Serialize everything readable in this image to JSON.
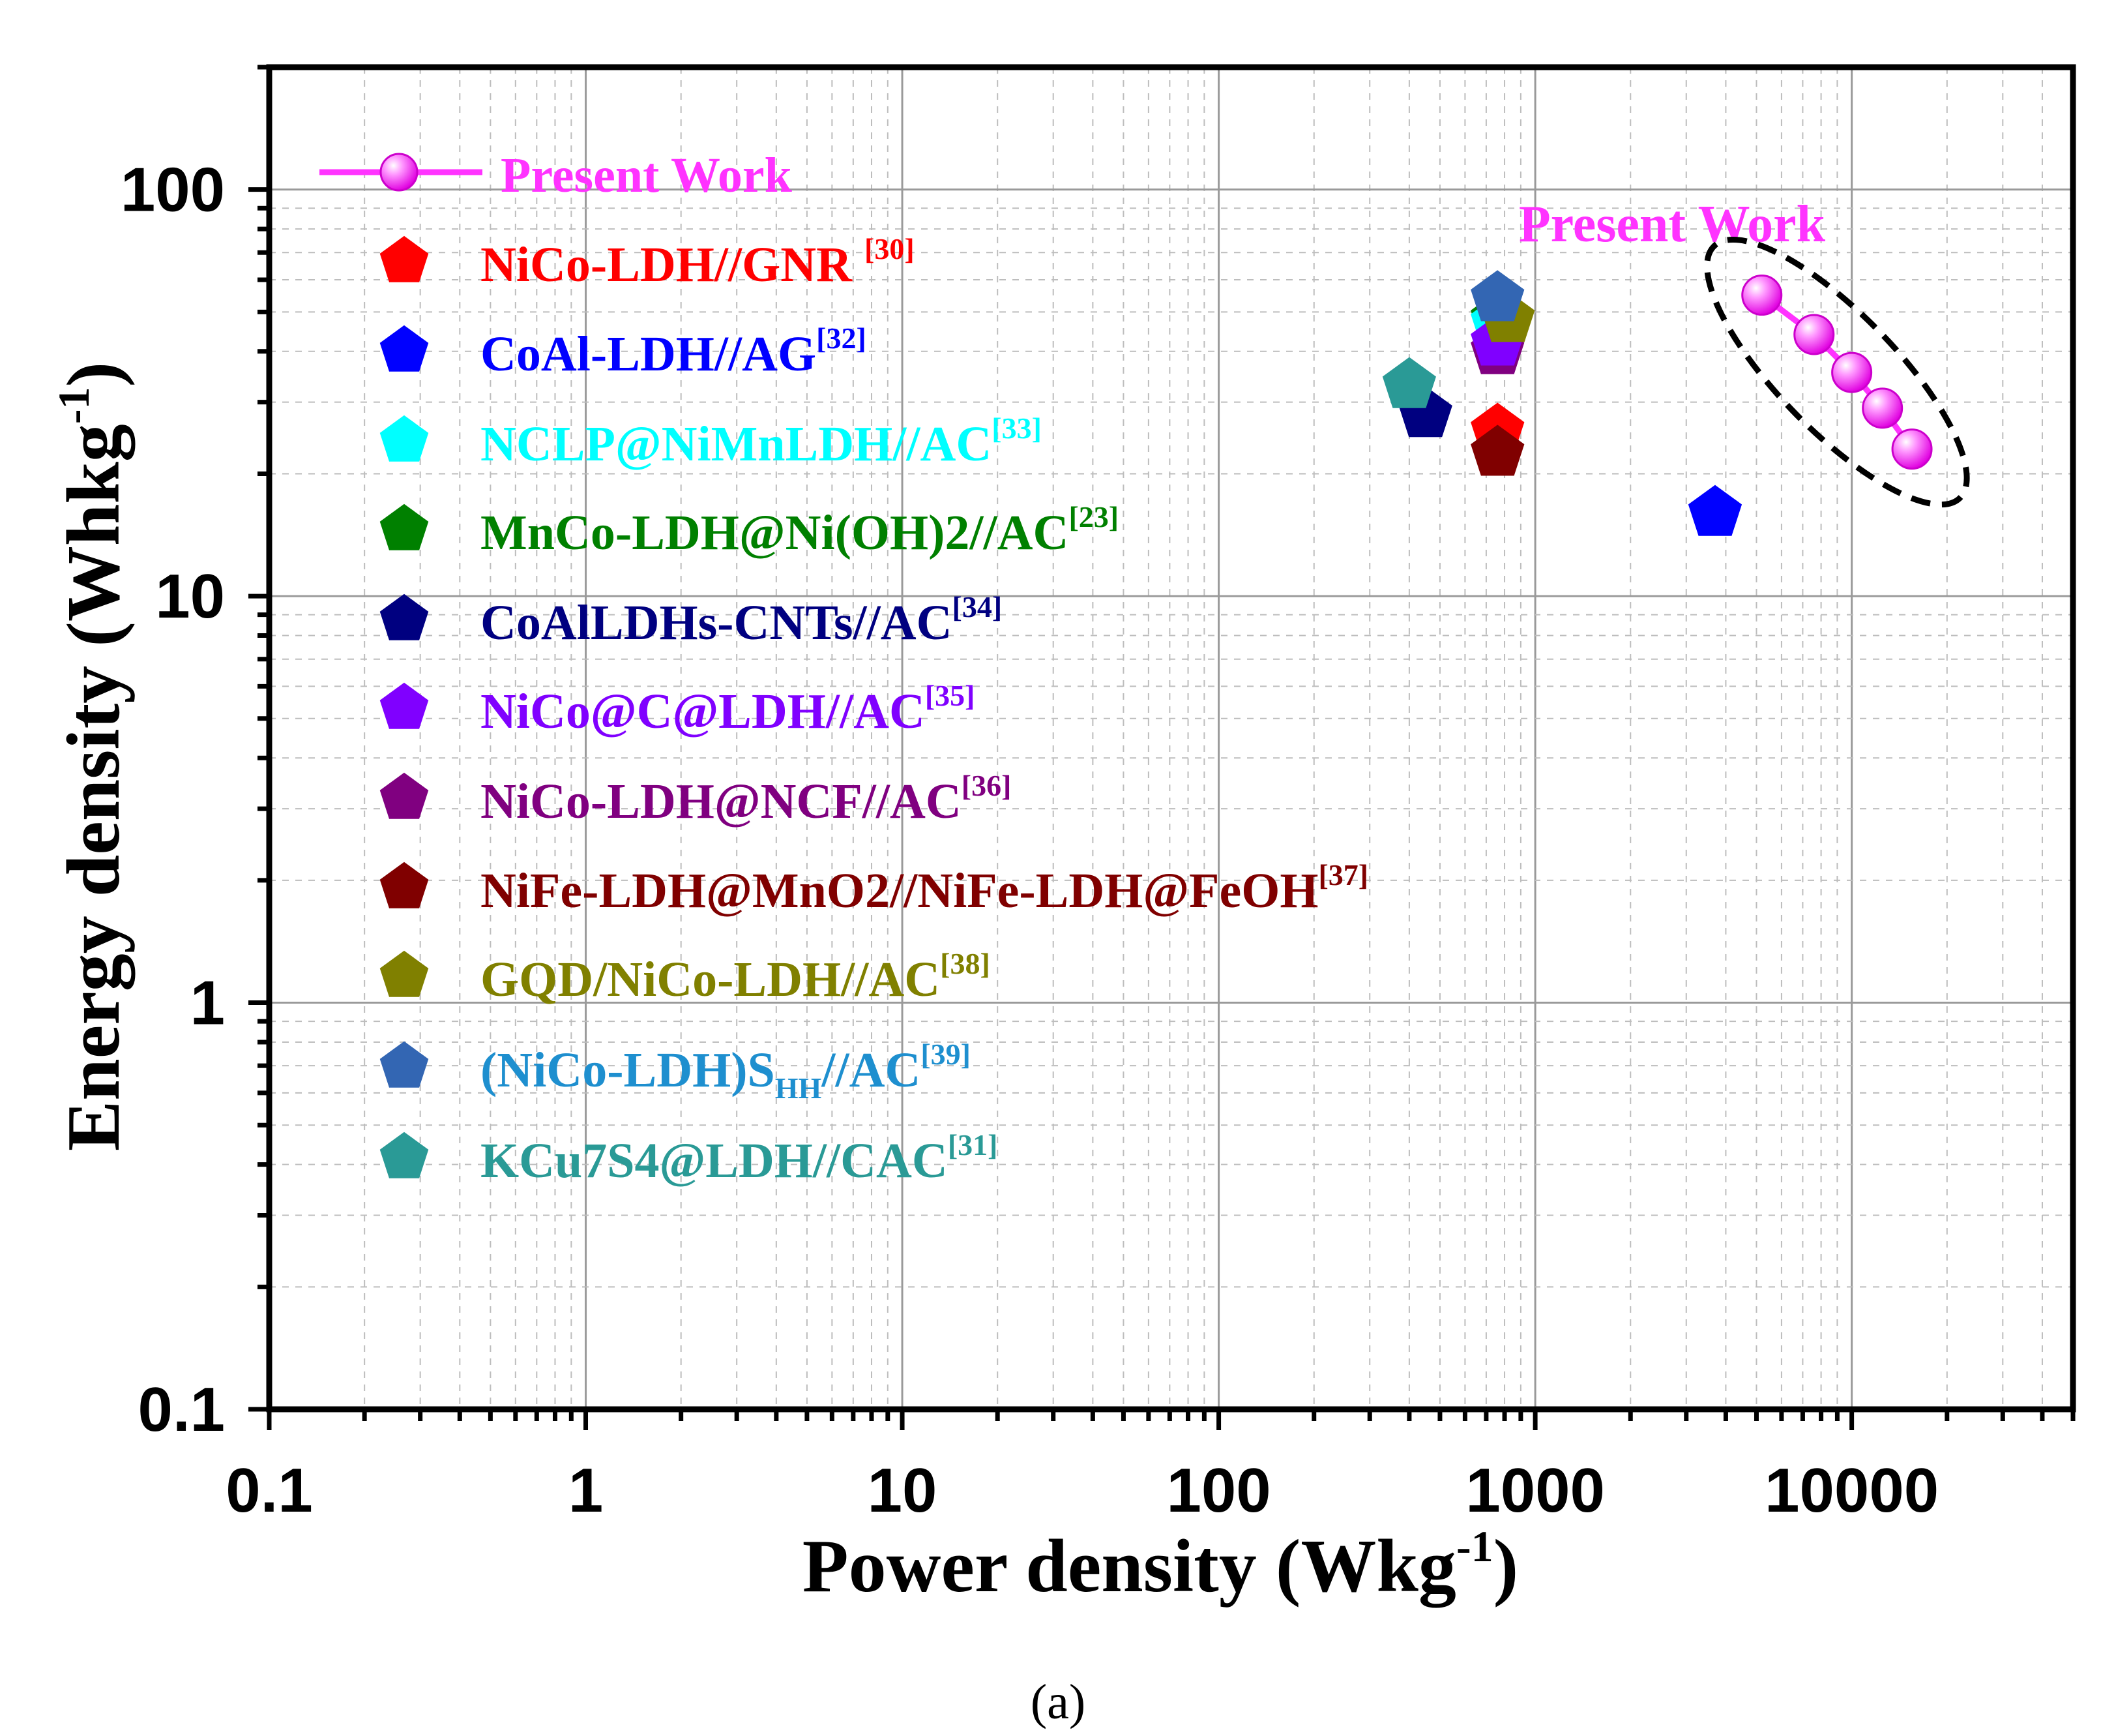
{
  "chart_data": {
    "type": "scatter",
    "x_scale": "log",
    "y_scale": "log",
    "xlim": [
      0.1,
      50000
    ],
    "ylim": [
      0.1,
      200
    ],
    "grid": true,
    "xlabel": "Power density (Wkg",
    "xlabel_sup": "-1",
    "xlabel_end": ")",
    "ylabel": "Energy density (Whkg",
    "ylabel_sup": "-1",
    "ylabel_end": ")",
    "x_ticks": [
      {
        "value": 0.1,
        "label": "0.1"
      },
      {
        "value": 1,
        "label": "1"
      },
      {
        "value": 10,
        "label": "10"
      },
      {
        "value": 100,
        "label": "100"
      },
      {
        "value": 1000,
        "label": "1000"
      },
      {
        "value": 10000,
        "label": "10000"
      }
    ],
    "y_ticks": [
      {
        "value": 0.1,
        "label": "0.1"
      },
      {
        "value": 1,
        "label": "1"
      },
      {
        "value": 10,
        "label": "10"
      },
      {
        "value": 100,
        "label": "100"
      }
    ],
    "series": [
      {
        "name": "Present Work",
        "color": "#ff33ff",
        "marker": "sphere",
        "line": true,
        "ref": "",
        "sub": "",
        "suffix": "",
        "points": [
          [
            5200,
            55
          ],
          [
            7600,
            44
          ],
          [
            10000,
            35.5
          ],
          [
            12500,
            29
          ],
          [
            15500,
            23
          ]
        ]
      },
      {
        "name": "NiCo-LDH//GNR ",
        "color": "#ff0000",
        "marker": "pentagon",
        "line": false,
        "ref": "[30]",
        "sub": "",
        "suffix": "",
        "points": [
          [
            760,
            25.5
          ]
        ]
      },
      {
        "name": "CoAl-LDH//AG",
        "color": "#0000ff",
        "marker": "pentagon",
        "line": false,
        "ref": "[32]",
        "sub": "",
        "suffix": "",
        "points": [
          [
            3700,
            16
          ]
        ]
      },
      {
        "name": "NCLP@NiMnLDH//AC",
        "color": "#00ffff",
        "marker": "pentagon",
        "line": false,
        "ref": "[33]",
        "sub": "",
        "suffix": "",
        "points": [
          [
            760,
            47
          ]
        ]
      },
      {
        "name": "MnCo-LDH@Ni(OH)2//AC",
        "color": "#008000",
        "marker": "pentagon",
        "line": false,
        "ref": "[23]",
        "sub": "",
        "suffix": "",
        "points": [
          [
            760,
            48
          ]
        ]
      },
      {
        "name": "CoAlLDHs-CNTs//AC",
        "color": "#000080",
        "marker": "pentagon",
        "line": false,
        "ref": "[34]",
        "sub": "",
        "suffix": "",
        "points": [
          [
            450,
            28
          ]
        ]
      },
      {
        "name": "NiCo@C@LDH//AC",
        "color": "#8000ff",
        "marker": "pentagon",
        "line": false,
        "ref": "[35]",
        "sub": "",
        "suffix": "",
        "points": [
          [
            760,
            42
          ]
        ]
      },
      {
        "name": "NiCo-LDH@NCF//AC",
        "color": "#800080",
        "marker": "pentagon",
        "line": false,
        "ref": "[36]",
        "sub": "",
        "suffix": "",
        "points": [
          [
            760,
            40
          ]
        ]
      },
      {
        "name": "NiFe-LDH@MnO2//NiFe-LDH@FeOH",
        "color": "#800000",
        "marker": "pentagon",
        "line": false,
        "ref": "[37]",
        "sub": "",
        "suffix": "",
        "points": [
          [
            760,
            22.5
          ]
        ]
      },
      {
        "name": "GQD/NiCo-LDH//AC",
        "color": "#808000",
        "marker": "pentagon",
        "line": false,
        "ref": "[38]",
        "sub": "",
        "suffix": "",
        "points": [
          [
            820,
            48
          ]
        ]
      },
      {
        "name": "(NiCo-LDH)S",
        "color": "#3366b3",
        "marker": "pentagon",
        "line": false,
        "ref": "[39]",
        "sub": "HH",
        "suffix": "//AC",
        "points": [
          [
            760,
            54
          ]
        ]
      },
      {
        "name": "KCu7S4@LDH//CAC",
        "color": "#2a9a96",
        "marker": "pentagon",
        "line": false,
        "ref": "[31]",
        "sub": "",
        "suffix": "",
        "points": [
          [
            400,
            33
          ]
        ]
      }
    ],
    "annotations": [
      {
        "text": "Present Work",
        "color": "#ff33ff"
      }
    ],
    "caption": "(a)"
  },
  "colors": {
    "legend_label_color_coblue": "#1e8fcf"
  }
}
